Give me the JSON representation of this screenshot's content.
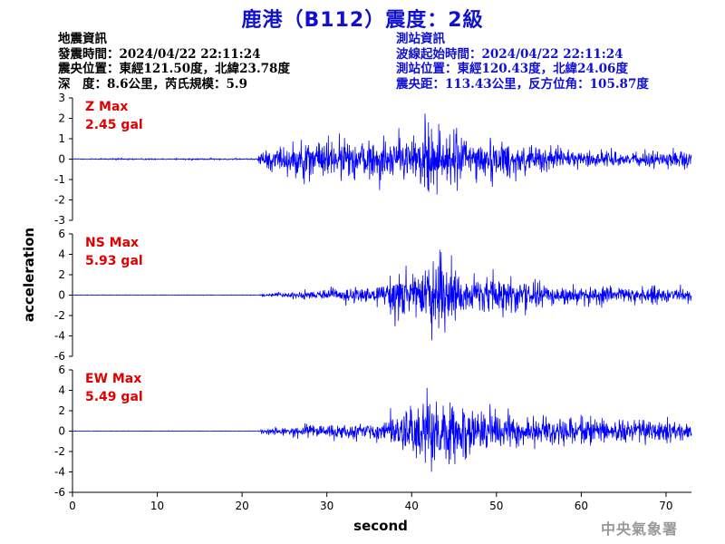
{
  "title": "鹿港（B112）震度：2級",
  "earthquake_info": {
    "heading": "地震資訊",
    "time": "發震時間：2024/04/22 22:11:24",
    "epicenter": "震央位置：東經121.50度，北緯23.78度",
    "depth_magnitude": "深　度：8.6公里，芮氏規模：5.9"
  },
  "station_info": {
    "heading": "測站資訊",
    "start_time": "波線起始時間：2024/04/22 22:11:24",
    "location": "測站位置：東經120.43度，北緯24.06度",
    "distance_azimuth": "震央距：113.43公里，反方位角：105.87度"
  },
  "agency": "中央氣象署",
  "colors": {
    "title": "#1010d0",
    "trace": "#0000ff",
    "max_label": "#e00000",
    "station_info": "#1010d0"
  },
  "chart_data": {
    "type": "line",
    "xlabel": "second",
    "ylabel": "acceleration",
    "xlim": [
      0,
      73
    ],
    "x_ticks": [
      0,
      10,
      20,
      30,
      40,
      50,
      60,
      70
    ],
    "panels": [
      {
        "name": "Z",
        "max_title": "Z Max",
        "max_value": "2.45 gal",
        "ylim": [
          -3,
          3
        ],
        "y_ticks": [
          -3,
          -2,
          -1,
          0,
          1,
          2,
          3
        ],
        "envelope": [
          [
            0,
            0.04
          ],
          [
            21.8,
            0.04
          ],
          [
            22,
            0.6
          ],
          [
            24,
            0.8
          ],
          [
            26,
            1.1
          ],
          [
            30,
            1.3
          ],
          [
            35,
            1.2
          ],
          [
            40,
            1.45
          ],
          [
            42,
            2.4
          ],
          [
            44,
            1.8
          ],
          [
            48,
            1.3
          ],
          [
            52,
            1.15
          ],
          [
            56,
            0.8
          ],
          [
            60,
            0.55
          ],
          [
            65,
            0.45
          ],
          [
            70,
            0.5
          ],
          [
            73,
            0.6
          ]
        ]
      },
      {
        "name": "NS",
        "max_title": "NS Max",
        "max_value": "5.93 gal",
        "ylim": [
          -6,
          6
        ],
        "y_ticks": [
          -6,
          -4,
          -2,
          0,
          2,
          4,
          6
        ],
        "envelope": [
          [
            0,
            0.03
          ],
          [
            21.8,
            0.03
          ],
          [
            22.5,
            0.2
          ],
          [
            26,
            0.4
          ],
          [
            30,
            0.7
          ],
          [
            35,
            0.9
          ],
          [
            37,
            1.6
          ],
          [
            38,
            3.2
          ],
          [
            40,
            3.0
          ],
          [
            42,
            3.8
          ],
          [
            43.5,
            5.9
          ],
          [
            45,
            3.5
          ],
          [
            48,
            2.6
          ],
          [
            52,
            2.0
          ],
          [
            56,
            1.5
          ],
          [
            60,
            1.1
          ],
          [
            65,
            1.1
          ],
          [
            70,
            1.0
          ],
          [
            73,
            0.9
          ]
        ]
      },
      {
        "name": "EW",
        "max_title": "EW Max",
        "max_value": "5.49 gal",
        "ylim": [
          -6,
          6
        ],
        "y_ticks": [
          -6,
          -4,
          -2,
          0,
          2,
          4,
          6
        ],
        "envelope": [
          [
            0,
            0.03
          ],
          [
            21.8,
            0.03
          ],
          [
            22.5,
            0.3
          ],
          [
            26,
            0.6
          ],
          [
            30,
            0.9
          ],
          [
            35,
            1.1
          ],
          [
            37,
            1.4
          ],
          [
            38,
            2.4
          ],
          [
            40,
            3.2
          ],
          [
            42,
            5.4
          ],
          [
            43.5,
            4.2
          ],
          [
            46,
            3.2
          ],
          [
            50,
            2.4
          ],
          [
            55,
            1.8
          ],
          [
            60,
            1.6
          ],
          [
            65,
            1.5
          ],
          [
            70,
            1.4
          ],
          [
            73,
            1.0
          ]
        ]
      }
    ]
  }
}
